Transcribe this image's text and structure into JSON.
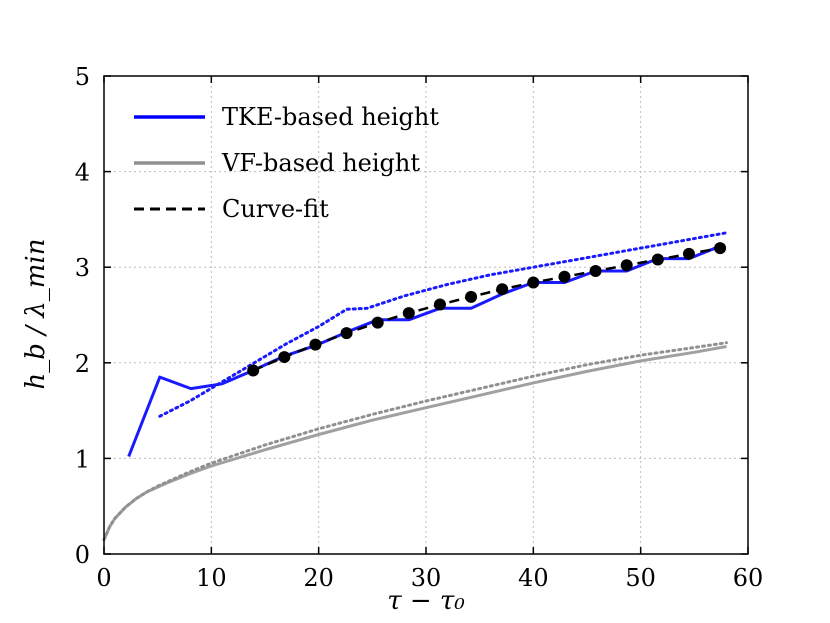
{
  "chart_data": {
    "type": "line",
    "title": "",
    "xlabel": "τ − τ₀",
    "ylabel": "h_b / λ_min",
    "xlim": [
      0,
      60
    ],
    "ylim": [
      0,
      5
    ],
    "xticks": [
      0,
      10,
      20,
      30,
      40,
      50,
      60
    ],
    "yticks": [
      0,
      1,
      2,
      3,
      4,
      5
    ],
    "grid": true,
    "legend_position": "top-left",
    "legend": [
      {
        "label": "TKE-based height",
        "color": "#0000ff",
        "style": "solid"
      },
      {
        "label": "VF-based height",
        "color": "#909090",
        "style": "solid"
      },
      {
        "label": "Curve-fit",
        "color": "#000000",
        "style": "dashed"
      }
    ],
    "series": [
      {
        "name": "TKE-based height",
        "style": "solid",
        "color": "#1a1aff",
        "x": [
          2.3,
          5.2,
          8.1,
          11.0,
          13.9,
          16.8,
          19.7,
          22.6,
          25.5,
          28.4,
          31.3,
          34.2,
          37.1,
          40.0,
          42.9,
          45.8,
          48.7,
          51.6,
          54.5,
          57.4
        ],
        "values": [
          1.02,
          1.85,
          1.73,
          1.78,
          1.92,
          2.07,
          2.18,
          2.32,
          2.45,
          2.45,
          2.57,
          2.57,
          2.72,
          2.84,
          2.84,
          2.96,
          2.96,
          3.09,
          3.09,
          3.22
        ]
      },
      {
        "name": "TKE-based height (dotted)",
        "style": "dotted",
        "color": "#1a1aff",
        "x": [
          5.2,
          8.0,
          11.0,
          14.0,
          17.0,
          20.0,
          22.6,
          24.5,
          28.0,
          32.0,
          36.0,
          40.0,
          44.0,
          48.0,
          52.0,
          56.0,
          58.0
        ],
        "values": [
          1.44,
          1.6,
          1.8,
          2.0,
          2.2,
          2.38,
          2.56,
          2.57,
          2.7,
          2.82,
          2.92,
          3.0,
          3.08,
          3.16,
          3.24,
          3.32,
          3.36
        ]
      },
      {
        "name": "VF-based height",
        "style": "solid",
        "color": "#a0a0a0",
        "x": [
          0,
          0.5,
          1,
          2,
          3,
          4,
          5,
          6,
          8,
          10,
          15,
          20,
          25,
          30,
          35,
          40,
          45,
          50,
          55,
          58
        ],
        "values": [
          0.15,
          0.28,
          0.37,
          0.49,
          0.58,
          0.65,
          0.7,
          0.75,
          0.84,
          0.92,
          1.09,
          1.25,
          1.4,
          1.53,
          1.66,
          1.79,
          1.91,
          2.02,
          2.11,
          2.17
        ]
      },
      {
        "name": "VF-based height (dotted)",
        "style": "dotted",
        "color": "#909090",
        "x": [
          0,
          0.5,
          1,
          2,
          3,
          4,
          5,
          6,
          8,
          10,
          15,
          20,
          25,
          30,
          35,
          40,
          45,
          50,
          55,
          58
        ],
        "values": [
          0.15,
          0.28,
          0.37,
          0.49,
          0.58,
          0.65,
          0.71,
          0.76,
          0.86,
          0.95,
          1.14,
          1.31,
          1.46,
          1.6,
          1.73,
          1.86,
          1.98,
          2.08,
          2.16,
          2.21
        ]
      },
      {
        "name": "Curve-fit",
        "style": "dashed",
        "color": "#000000",
        "markers": true,
        "x": [
          13.9,
          16.8,
          19.7,
          22.6,
          25.5,
          28.4,
          31.3,
          34.2,
          37.1,
          40.0,
          42.9,
          45.8,
          48.7,
          51.6,
          54.5,
          57.4
        ],
        "values": [
          1.92,
          2.06,
          2.19,
          2.31,
          2.42,
          2.52,
          2.61,
          2.69,
          2.77,
          2.84,
          2.9,
          2.96,
          3.02,
          3.08,
          3.14,
          3.2
        ]
      }
    ]
  }
}
